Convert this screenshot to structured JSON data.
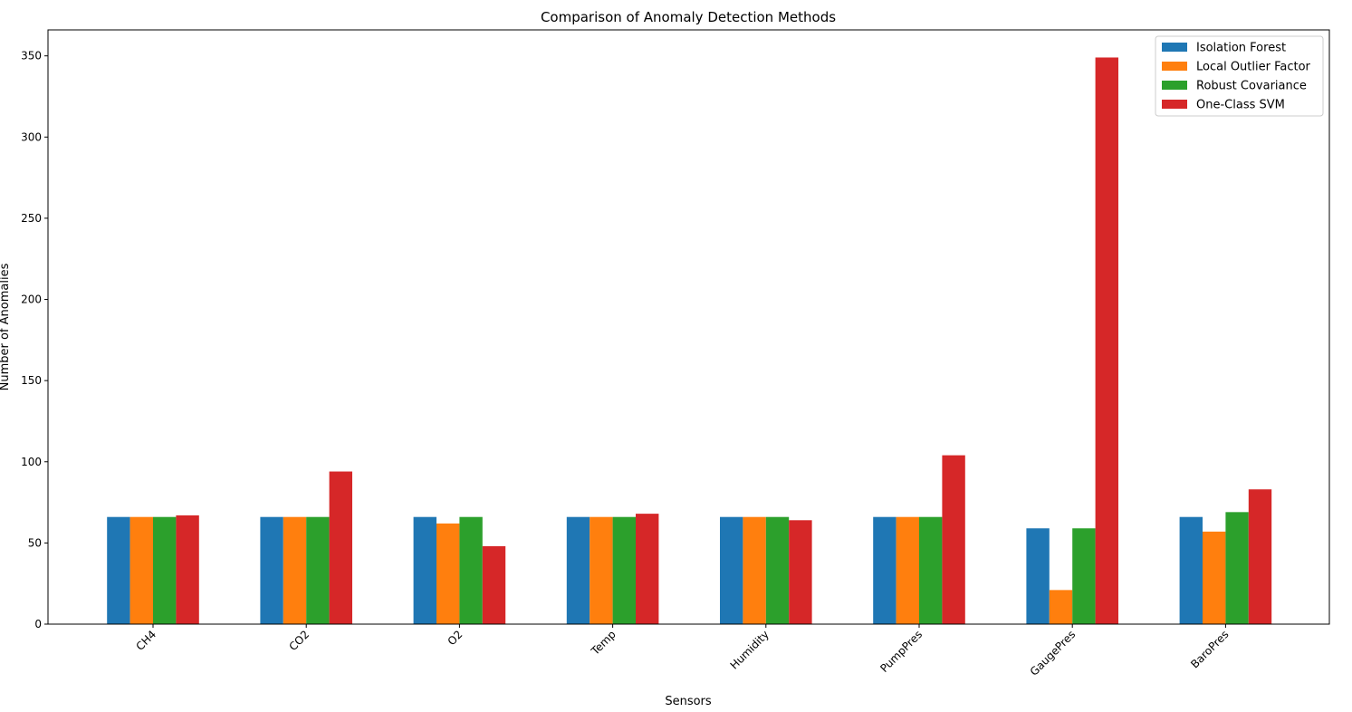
{
  "chart_data": {
    "type": "bar",
    "title": "Comparison of Anomaly Detection Methods",
    "xlabel": "Sensors",
    "ylabel": "Number of Anomalies",
    "categories": [
      "CH4",
      "CO2",
      "O2",
      "Temp",
      "Humidity",
      "PumpPres",
      "GaugePres",
      "BaroPres"
    ],
    "series": [
      {
        "name": "Isolation Forest",
        "color": "#1f77b4",
        "values": [
          66,
          66,
          66,
          66,
          66,
          66,
          59,
          66
        ]
      },
      {
        "name": "Local Outlier Factor",
        "color": "#ff7f0e",
        "values": [
          66,
          66,
          62,
          66,
          66,
          66,
          21,
          57
        ]
      },
      {
        "name": "Robust Covariance",
        "color": "#2ca02c",
        "values": [
          66,
          66,
          66,
          66,
          66,
          66,
          59,
          69
        ]
      },
      {
        "name": "One-Class SVM",
        "color": "#d62728",
        "values": [
          67,
          94,
          48,
          68,
          64,
          104,
          349,
          83
        ]
      }
    ],
    "ylim": [
      0,
      366
    ],
    "yticks": [
      0,
      50,
      100,
      150,
      200,
      250,
      300,
      350
    ],
    "grid": false,
    "legend": "top-right"
  }
}
